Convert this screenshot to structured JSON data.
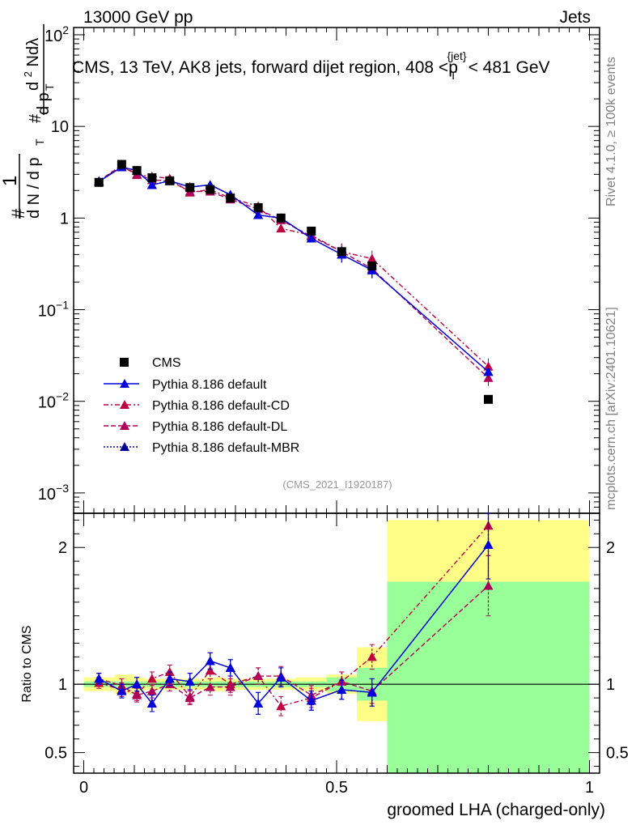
{
  "header": {
    "left": "13000 GeV pp",
    "right": "Jets"
  },
  "side_labels": {
    "rivet": "Rivet 4.1.0, ≥ 100k events",
    "mcplots": "mcplots.cern.ch [arXiv:2401.10621]"
  },
  "chart_data": {
    "type": "line",
    "title": "CMS, 13 TeV, AK8 jets, forward dijet region, 408 <p",
    "title_sup": "{jet}",
    "title_sub": "T",
    "title_end": "< 481 GeV",
    "watermark": "(CMS_2021_I1920187)",
    "xlabel": "groomed LHA (charged-only)",
    "ylabel_ratio": "Ratio to CMS",
    "ylabel_main": {
      "hash": "#",
      "one": "1",
      "dN": "d N / d p",
      "T": "T",
      "hash2": "#",
      "dp": "d p",
      "T2": "T",
      "d2N": "d",
      "sq": "2",
      "N": "N",
      "dlam": "dλ"
    },
    "xlim": [
      -0.02,
      1.02
    ],
    "ylim_main": [
      0.0006,
      120
    ],
    "ylim_ratio": [
      0.35,
      2.25
    ],
    "x_ticks": [
      "0",
      "0.5",
      "1"
    ],
    "x_tick_values": [
      0,
      0.5,
      1
    ],
    "y_ticks_main": [
      {
        "v": 100,
        "base": "10",
        "exp": "2"
      },
      {
        "v": 10,
        "base": "10",
        "exp": ""
      },
      {
        "v": 1,
        "base": "1",
        "exp": ""
      },
      {
        "v": 0.1,
        "base": "10",
        "exp": "−1"
      },
      {
        "v": 0.01,
        "base": "10",
        "exp": "−2"
      },
      {
        "v": 0.001,
        "base": "10",
        "exp": "−3"
      }
    ],
    "y_ticks_ratio": [
      {
        "v": 2,
        "label": "2"
      },
      {
        "v": 1,
        "label": "1"
      },
      {
        "v": 0.5,
        "label": "0.5"
      }
    ],
    "bin_edges": [
      0,
      0.06,
      0.1,
      0.12,
      0.16,
      0.18,
      0.24,
      0.28,
      0.32,
      0.36,
      0.42,
      0.48,
      0.54,
      0.6,
      1.0
    ],
    "x": [
      0.03,
      0.075,
      0.105,
      0.135,
      0.17,
      0.21,
      0.25,
      0.29,
      0.345,
      0.39,
      0.45,
      0.51,
      0.57,
      0.8
    ],
    "legend": {
      "cms": "CMS",
      "default": "Pythia 8.186 default",
      "cd": "Pythia 8.186 default-CD",
      "dl": "Pythia 8.186 default-DL",
      "mbr": "Pythia 8.186 default-MBR"
    },
    "data": {
      "name": "CMS",
      "values": [
        2.45,
        3.85,
        3.3,
        2.75,
        2.55,
        2.15,
        2.05,
        1.65,
        1.3,
        1.0,
        0.72,
        0.43,
        0.3,
        0.0105
      ]
    },
    "series": [
      {
        "name": "Pythia 8.186 default",
        "color": "#0000dd",
        "dash": "",
        "marker": "triangle",
        "values": [
          2.5,
          3.6,
          3.3,
          2.3,
          2.55,
          2.18,
          2.3,
          1.8,
          1.08,
          1.0,
          0.6,
          0.4,
          0.27,
          0.021
        ],
        "ratio": [
          1.04,
          0.95,
          1.0,
          0.86,
          1.04,
          1.02,
          1.17,
          1.12,
          0.86,
          1.05,
          0.88,
          0.96,
          0.94,
          2.02
        ],
        "ratio_err": [
          0.04,
          0.05,
          0.05,
          0.06,
          0.05,
          0.06,
          0.06,
          0.06,
          0.08,
          0.07,
          0.07,
          0.07,
          0.1,
          0.25
        ]
      },
      {
        "name": "Pythia 8.186 default-CD",
        "color": "#c00040",
        "dash": "6,3,2,3",
        "marker": "triangle",
        "values": [
          2.5,
          3.7,
          2.95,
          2.85,
          2.7,
          1.9,
          2.05,
          1.65,
          1.35,
          0.77,
          0.65,
          0.43,
          0.36,
          0.024
        ],
        "ratio": [
          1.01,
          0.96,
          0.93,
          1.04,
          1.09,
          0.91,
          1.1,
          1.0,
          1.06,
          0.84,
          0.9,
          1.02,
          1.2,
          2.16
        ],
        "ratio_err": [
          0.04,
          0.05,
          0.05,
          0.05,
          0.05,
          0.05,
          0.06,
          0.06,
          0.06,
          0.07,
          0.07,
          0.07,
          0.09,
          0.22
        ]
      },
      {
        "name": "Pythia 8.186 default-DL",
        "color": "#b0005a",
        "dash": "6,3",
        "marker": "triangle",
        "values": [
          2.55,
          3.75,
          3.0,
          2.6,
          2.55,
          1.95,
          1.95,
          1.6,
          1.25,
          0.95,
          0.63,
          0.43,
          0.28,
          0.018
        ],
        "ratio": [
          1.04,
          0.99,
          0.92,
          0.95,
          1.0,
          0.9,
          0.98,
          0.98,
          1.06,
          1.06,
          0.92,
          1.02,
          0.95,
          1.72
        ],
        "ratio_err": [
          0.04,
          0.05,
          0.05,
          0.05,
          0.05,
          0.05,
          0.06,
          0.06,
          0.06,
          0.07,
          0.07,
          0.07,
          0.09,
          0.22
        ]
      },
      {
        "name": "Pythia 8.186 default-MBR",
        "color": "#000099",
        "dash": "2,2",
        "marker": "triangle",
        "values": [
          2.5,
          3.6,
          3.3,
          2.3,
          2.55,
          2.18,
          2.3,
          1.8,
          1.08,
          1.0,
          0.6,
          0.4,
          0.27,
          0.021
        ],
        "ratio": [
          1.04,
          0.95,
          1.0,
          0.86,
          1.04,
          1.02,
          1.17,
          1.12,
          0.86,
          1.05,
          0.88,
          0.96,
          0.94,
          2.02
        ],
        "ratio_err": [
          0.04,
          0.05,
          0.05,
          0.06,
          0.05,
          0.06,
          0.06,
          0.06,
          0.08,
          0.07,
          0.07,
          0.07,
          0.1,
          0.25
        ]
      }
    ],
    "uncert_bands": {
      "stat_color": "#99ff99",
      "syst_color": "#ffff88",
      "green_half": [
        0.02,
        0.02,
        0.02,
        0.02,
        0.02,
        0.02,
        0.02,
        0.02,
        0.02,
        0.02,
        0.02,
        0.05,
        0.12,
        0.75
      ],
      "yellow_half": [
        0.05,
        0.07,
        0.05,
        0.04,
        0.04,
        0.04,
        0.05,
        0.04,
        0.04,
        0.04,
        0.05,
        0.07,
        0.27,
        1.2
      ]
    }
  }
}
